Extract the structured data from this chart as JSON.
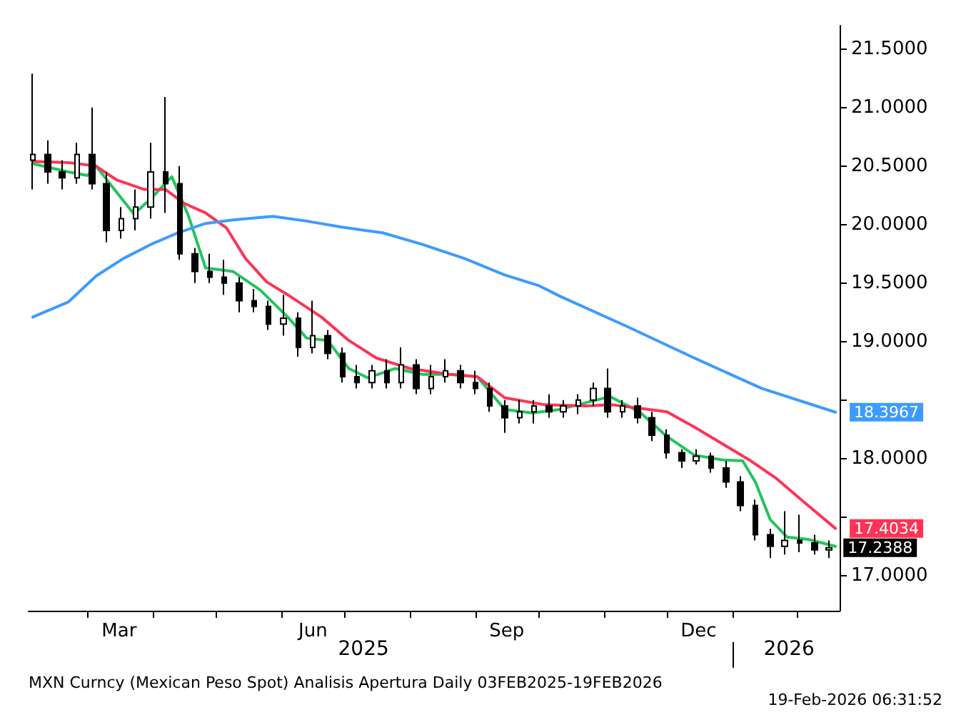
{
  "chart_data": {
    "type": "candlestick",
    "x": [
      "2025-02-03",
      "2025-02-10",
      "2025-02-17",
      "2025-02-24",
      "2025-03-03",
      "2025-03-10",
      "2025-03-17",
      "2025-03-24",
      "2025-03-31",
      "2025-04-07",
      "2025-04-14",
      "2025-04-21",
      "2025-04-28",
      "2025-05-05",
      "2025-05-12",
      "2025-05-19",
      "2025-05-26",
      "2025-06-02",
      "2025-06-09",
      "2025-06-16",
      "2025-06-23",
      "2025-06-30",
      "2025-07-07",
      "2025-07-14",
      "2025-07-21",
      "2025-07-28",
      "2025-08-04",
      "2025-08-11",
      "2025-08-18",
      "2025-08-25",
      "2025-09-01",
      "2025-09-08",
      "2025-09-15",
      "2025-09-22",
      "2025-09-29",
      "2025-10-06",
      "2025-10-13",
      "2025-10-20",
      "2025-10-27",
      "2025-11-03",
      "2025-11-10",
      "2025-11-17",
      "2025-11-24",
      "2025-12-01",
      "2025-12-08",
      "2025-12-15",
      "2025-12-22",
      "2025-12-29",
      "2026-01-05",
      "2026-01-12",
      "2026-01-19",
      "2026-01-26",
      "2026-02-02",
      "2026-02-09",
      "2026-02-16"
    ],
    "ohlc": [
      [
        20.55,
        21.29,
        20.3,
        20.6
      ],
      [
        20.6,
        20.72,
        20.35,
        20.45
      ],
      [
        20.45,
        20.55,
        20.3,
        20.4
      ],
      [
        20.4,
        20.7,
        20.35,
        20.6
      ],
      [
        20.6,
        21.0,
        20.3,
        20.35
      ],
      [
        20.35,
        20.45,
        19.85,
        19.95
      ],
      [
        19.95,
        20.15,
        19.88,
        20.05
      ],
      [
        20.05,
        20.3,
        19.95,
        20.15
      ],
      [
        20.15,
        20.7,
        20.05,
        20.45
      ],
      [
        20.45,
        21.09,
        20.1,
        20.35
      ],
      [
        20.35,
        20.5,
        19.7,
        19.75
      ],
      [
        19.75,
        19.8,
        19.5,
        19.6
      ],
      [
        19.6,
        19.75,
        19.5,
        19.55
      ],
      [
        19.55,
        19.7,
        19.4,
        19.5
      ],
      [
        19.5,
        19.55,
        19.25,
        19.35
      ],
      [
        19.35,
        19.45,
        19.25,
        19.3
      ],
      [
        19.3,
        19.35,
        19.1,
        19.15
      ],
      [
        19.15,
        19.4,
        19.05,
        19.2
      ],
      [
        19.2,
        19.25,
        18.87,
        18.95
      ],
      [
        18.95,
        19.35,
        18.9,
        19.05
      ],
      [
        19.05,
        19.1,
        18.85,
        18.9
      ],
      [
        18.9,
        18.95,
        18.65,
        18.7
      ],
      [
        18.7,
        18.8,
        18.6,
        18.65
      ],
      [
        18.65,
        18.8,
        18.6,
        18.75
      ],
      [
        18.75,
        18.85,
        18.6,
        18.65
      ],
      [
        18.65,
        18.95,
        18.6,
        18.8
      ],
      [
        18.8,
        18.85,
        18.55,
        18.6
      ],
      [
        18.6,
        18.8,
        18.55,
        18.7
      ],
      [
        18.7,
        18.85,
        18.65,
        18.75
      ],
      [
        18.75,
        18.8,
        18.6,
        18.65
      ],
      [
        18.65,
        18.75,
        18.55,
        18.6
      ],
      [
        18.6,
        18.65,
        18.4,
        18.45
      ],
      [
        18.45,
        18.5,
        18.22,
        18.35
      ],
      [
        18.35,
        18.5,
        18.3,
        18.4
      ],
      [
        18.4,
        18.5,
        18.3,
        18.45
      ],
      [
        18.45,
        18.55,
        18.35,
        18.4
      ],
      [
        18.4,
        18.5,
        18.35,
        18.45
      ],
      [
        18.45,
        18.55,
        18.38,
        18.5
      ],
      [
        18.5,
        18.65,
        18.45,
        18.6
      ],
      [
        18.6,
        18.77,
        18.35,
        18.4
      ],
      [
        18.4,
        18.5,
        18.35,
        18.45
      ],
      [
        18.45,
        18.52,
        18.3,
        18.35
      ],
      [
        18.35,
        18.4,
        18.15,
        18.2
      ],
      [
        18.2,
        18.25,
        18.0,
        18.05
      ],
      [
        18.05,
        18.08,
        17.92,
        17.98
      ],
      [
        17.98,
        18.08,
        17.95,
        18.02
      ],
      [
        18.02,
        18.05,
        17.88,
        17.92
      ],
      [
        17.92,
        17.98,
        17.75,
        17.8
      ],
      [
        17.8,
        17.85,
        17.55,
        17.6
      ],
      [
        17.6,
        17.65,
        17.3,
        17.35
      ],
      [
        17.35,
        17.4,
        17.15,
        17.25
      ],
      [
        17.25,
        17.55,
        17.18,
        17.3
      ],
      [
        17.3,
        17.52,
        17.2,
        17.28
      ],
      [
        17.28,
        17.35,
        17.18,
        17.22
      ],
      [
        17.22,
        17.3,
        17.15,
        17.2388
      ]
    ],
    "color": "#000000",
    "value_labels": [
      null,
      null,
      null,
      null,
      null,
      null,
      null,
      null,
      null,
      null,
      null,
      null,
      null,
      null,
      null,
      null,
      null,
      null,
      null,
      null,
      null,
      null,
      null,
      null,
      null,
      null,
      null,
      null,
      null,
      null,
      null,
      null,
      null,
      null,
      null,
      null,
      null,
      null,
      null,
      null,
      null,
      null,
      null,
      null,
      null,
      null,
      null,
      null,
      null,
      null,
      null,
      null,
      null,
      null,
      "17.2388"
    ],
    "series": [
      {
        "type": "line",
        "color": "#22c55e",
        "x": [
          "2025-02-03",
          "2025-02-20",
          "2025-03-01",
          "2025-03-05",
          "2025-03-23",
          "2025-03-31",
          "2025-04-10",
          "2025-04-18",
          "2025-04-26",
          "2025-05-09",
          "2025-05-22",
          "2025-06-04",
          "2025-06-13",
          "2025-06-23",
          "2025-07-03",
          "2025-07-12",
          "2025-07-25",
          "2025-08-07",
          "2025-08-20",
          "2025-09-02",
          "2025-09-15",
          "2025-09-28",
          "2025-10-11",
          "2025-11-04",
          "2025-11-18",
          "2025-12-01",
          "2025-12-14",
          "2025-12-27",
          "2026-01-06",
          "2026-01-12",
          "2026-01-19",
          "2026-01-27",
          "2026-02-06",
          "2026-02-19"
        ],
        "values": [
          20.52,
          20.45,
          20.42,
          20.5,
          20.09,
          20.22,
          20.41,
          20.07,
          19.63,
          19.6,
          19.44,
          19.21,
          19.03,
          19.01,
          18.77,
          18.69,
          18.77,
          18.72,
          18.72,
          18.7,
          18.42,
          18.39,
          18.42,
          18.53,
          18.4,
          18.19,
          18.03,
          17.99,
          17.98,
          17.8,
          17.48,
          17.33,
          17.31,
          17.25
        ]
      },
      {
        "type": "line",
        "color": "#ff3355",
        "x": [
          "2025-02-03",
          "2025-02-20",
          "2025-03-05",
          "2025-03-15",
          "2025-03-28",
          "2025-04-07",
          "2025-04-16",
          "2025-04-26",
          "2025-05-06",
          "2025-05-15",
          "2025-05-25",
          "2025-06-04",
          "2025-06-20",
          "2025-07-03",
          "2025-07-16",
          "2025-08-01",
          "2025-08-20",
          "2025-09-02",
          "2025-09-15",
          "2025-10-04",
          "2025-10-24",
          "2025-11-05",
          "2025-11-18",
          "2025-12-01",
          "2025-12-14",
          "2025-12-27",
          "2026-01-09",
          "2026-01-22",
          "2026-02-04",
          "2026-02-19"
        ],
        "values": [
          20.54,
          20.53,
          20.5,
          20.38,
          20.3,
          20.3,
          20.18,
          20.1,
          19.97,
          19.71,
          19.51,
          19.4,
          19.21,
          19.01,
          18.86,
          18.77,
          18.72,
          18.7,
          18.52,
          18.46,
          18.45,
          18.46,
          18.43,
          18.4,
          18.27,
          18.13,
          17.99,
          17.83,
          17.63,
          17.4034
        ],
        "value_labels": [
          null,
          null,
          null,
          null,
          null,
          null,
          null,
          null,
          null,
          null,
          null,
          null,
          null,
          null,
          null,
          null,
          null,
          null,
          null,
          null,
          null,
          null,
          null,
          null,
          null,
          null,
          null,
          null,
          null,
          "17.4034"
        ]
      },
      {
        "type": "line",
        "color": "#3d9bff",
        "x": [
          "2025-02-03",
          "2025-02-20",
          "2025-03-05",
          "2025-03-18",
          "2025-03-31",
          "2025-04-13",
          "2025-04-26",
          "2025-05-09",
          "2025-05-28",
          "2025-06-13",
          "2025-06-29",
          "2025-07-19",
          "2025-08-07",
          "2025-08-27",
          "2025-09-15",
          "2025-10-01",
          "2025-10-11",
          "2025-11-12",
          "2025-12-14",
          "2026-01-15",
          "2026-02-19"
        ],
        "values": [
          19.21,
          19.34,
          19.56,
          19.71,
          19.83,
          19.93,
          20.01,
          20.04,
          20.07,
          20.03,
          19.98,
          19.93,
          19.83,
          19.71,
          19.57,
          19.48,
          19.39,
          19.13,
          18.86,
          18.6,
          18.3967
        ],
        "value_labels": [
          null,
          null,
          null,
          null,
          null,
          null,
          null,
          null,
          null,
          null,
          null,
          null,
          null,
          null,
          null,
          null,
          null,
          null,
          null,
          null,
          "18.3967"
        ]
      }
    ],
    "xlim": [
      "2025-02-01",
      "2026-02-21"
    ],
    "xticks": [
      {
        "value": "2025-03-01",
        "label": null
      },
      {
        "value": "2025-03-16",
        "label": "Mar"
      },
      {
        "value": "2025-04-01",
        "label": null
      },
      {
        "value": "2025-05-01",
        "label": null
      },
      {
        "value": "2025-06-01",
        "label": null
      },
      {
        "value": "2025-06-16",
        "label": "Jun"
      },
      {
        "value": "2025-07-01",
        "label": null
      },
      {
        "value": "2025-08-01",
        "label": null
      },
      {
        "value": "2025-09-01",
        "label": null
      },
      {
        "value": "2025-09-16",
        "label": "Sep"
      },
      {
        "value": "2025-10-01",
        "label": null
      },
      {
        "value": "2025-11-01",
        "label": null
      },
      {
        "value": "2025-12-01",
        "label": null
      },
      {
        "value": "2025-12-16",
        "label": "Dec"
      },
      {
        "value": "2026-01-01",
        "label": null
      },
      {
        "value": "2026-02-01",
        "label": null
      }
    ],
    "x2lim": [
      "2025-02-01",
      "2026-02-21"
    ],
    "x2ticks": [
      {
        "value": "2025-07-10",
        "label": "2025"
      },
      {
        "value": "2026-01-01",
        "label": null
      },
      {
        "value": "2026-01-28",
        "label": "2026"
      }
    ],
    "ylim": [
      16.7,
      21.7
    ],
    "yticks": [
      {
        "value": 17,
        "label": "17.0000"
      },
      {
        "value": 17.5,
        "label": null
      },
      {
        "value": 18,
        "label": "18.0000"
      },
      {
        "value": 18.5,
        "label": null
      },
      {
        "value": 19,
        "label": "19.0000"
      },
      {
        "value": 19.5,
        "label": "19.5000"
      },
      {
        "value": 20,
        "label": "20.0000"
      },
      {
        "value": 20.5,
        "label": "20.5000"
      },
      {
        "value": 21,
        "label": "21.0000"
      },
      {
        "value": 21.5,
        "label": "21.5000"
      }
    ],
    "grid": false,
    "marker": "none",
    "annotations": [
      "MXN Curncy (Mexican Peso Spot) Analisis Apertura Daily 03FEB2025-19FEB2026",
      "19-Feb-2026 06:31:52"
    ]
  }
}
